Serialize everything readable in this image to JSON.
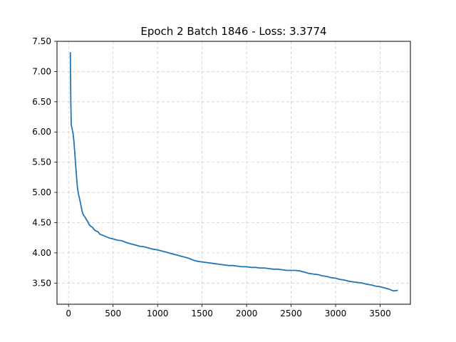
{
  "chart_data": {
    "type": "line",
    "title": "Epoch 2 Batch 1846 - Loss: 3.3774",
    "xlabel": "",
    "ylabel": "",
    "xlim": [
      -130,
      3840
    ],
    "ylim": [
      3.15,
      7.5
    ],
    "grid": true,
    "legend": "none",
    "x_ticks": [
      0,
      500,
      1000,
      1500,
      2000,
      2500,
      3000,
      3500
    ],
    "y_ticks": [
      3.5,
      4.0,
      4.5,
      5.0,
      5.5,
      6.0,
      6.5,
      7.0,
      7.5
    ],
    "series": [
      {
        "color": "#1f77b4",
        "x": [
          20,
          25,
          30,
          40,
          50,
          60,
          70,
          80,
          90,
          100,
          110,
          120,
          130,
          140,
          150,
          160,
          170,
          180,
          190,
          200,
          215,
          230,
          250,
          270,
          290,
          310,
          330,
          350,
          400,
          450,
          500,
          550,
          600,
          650,
          700,
          750,
          800,
          850,
          900,
          950,
          1000,
          1050,
          1100,
          1150,
          1200,
          1250,
          1300,
          1350,
          1400,
          1450,
          1500,
          1550,
          1600,
          1650,
          1700,
          1750,
          1800,
          1850,
          1900,
          1950,
          2000,
          2050,
          2100,
          2150,
          2200,
          2250,
          2300,
          2350,
          2400,
          2450,
          2500,
          2550,
          2600,
          2650,
          2700,
          2750,
          2800,
          2850,
          2900,
          2950,
          3000,
          3050,
          3100,
          3150,
          3200,
          3250,
          3300,
          3350,
          3400,
          3450,
          3500,
          3550,
          3600,
          3650,
          3700
        ],
        "values": [
          7.32,
          6.5,
          6.12,
          6.05,
          5.98,
          5.85,
          5.65,
          5.45,
          5.25,
          5.08,
          4.98,
          4.92,
          4.85,
          4.78,
          4.7,
          4.65,
          4.62,
          4.6,
          4.58,
          4.55,
          4.52,
          4.47,
          4.44,
          4.42,
          4.38,
          4.36,
          4.35,
          4.31,
          4.28,
          4.25,
          4.23,
          4.21,
          4.2,
          4.17,
          4.15,
          4.13,
          4.11,
          4.1,
          4.08,
          4.06,
          4.05,
          4.03,
          4.01,
          3.99,
          3.97,
          3.95,
          3.93,
          3.91,
          3.88,
          3.86,
          3.85,
          3.84,
          3.83,
          3.82,
          3.81,
          3.8,
          3.79,
          3.79,
          3.78,
          3.77,
          3.77,
          3.76,
          3.76,
          3.75,
          3.75,
          3.74,
          3.73,
          3.73,
          3.72,
          3.71,
          3.71,
          3.71,
          3.7,
          3.68,
          3.66,
          3.65,
          3.64,
          3.62,
          3.61,
          3.59,
          3.58,
          3.56,
          3.55,
          3.53,
          3.52,
          3.51,
          3.5,
          3.48,
          3.47,
          3.45,
          3.44,
          3.42,
          3.4,
          3.37,
          3.38
        ]
      }
    ]
  }
}
